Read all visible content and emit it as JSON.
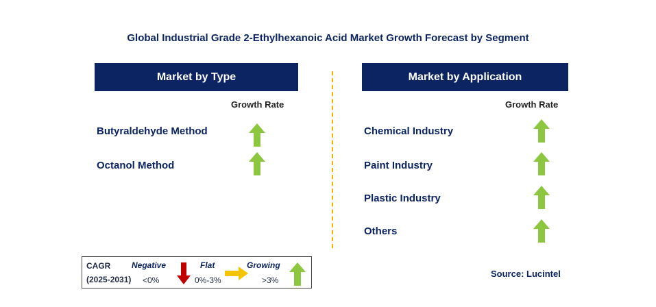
{
  "title": "Global Industrial Grade 2-Ethylhexanoic Acid Market Growth Forecast by Segment",
  "type_panel": {
    "header": "Market by Type",
    "growth_label": "Growth Rate",
    "items": [
      {
        "label": "Butyraldehyde Method",
        "trend": "growing"
      },
      {
        "label": "Octanol Method",
        "trend": "growing"
      }
    ]
  },
  "application_panel": {
    "header": "Market by Application",
    "growth_label": "Growth Rate",
    "items": [
      {
        "label": "Chemical Industry",
        "trend": "growing"
      },
      {
        "label": "Paint Industry",
        "trend": "growing"
      },
      {
        "label": "Plastic Industry",
        "trend": "growing"
      },
      {
        "label": "Others",
        "trend": "growing"
      }
    ]
  },
  "legend": {
    "cagr_label": "CAGR",
    "period": "(2025-2031)",
    "negative_label": "Negative",
    "negative_range": "<0%",
    "flat_label": "Flat",
    "flat_range": "0%-3%",
    "growing_label": "Growing",
    "growing_range": ">3%"
  },
  "source": "Source: Lucintel",
  "colors": {
    "header_bg": "#0c2461",
    "growing_arrow": "#8dc63f",
    "negative_arrow": "#c00000",
    "flat_arrow": "#f5c400",
    "divider": "#f0b400"
  },
  "icons": {
    "growing": "green-up-arrow-icon",
    "negative": "red-down-arrow-icon",
    "flat": "yellow-right-arrow-icon"
  }
}
